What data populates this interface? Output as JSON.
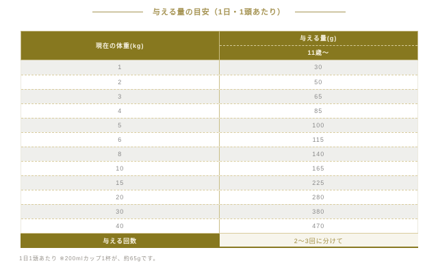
{
  "title": "与える量の目安（1日・1頭あたり）",
  "table": {
    "col1_header": "現在の体重(kg)",
    "col2_header": "与える量(g)",
    "col2_subheader": "11歳～",
    "rows": [
      [
        "1",
        "30"
      ],
      [
        "2",
        "50"
      ],
      [
        "3",
        "65"
      ],
      [
        "4",
        "85"
      ],
      [
        "5",
        "100"
      ],
      [
        "6",
        "115"
      ],
      [
        "8",
        "140"
      ],
      [
        "10",
        "165"
      ],
      [
        "15",
        "225"
      ],
      [
        "20",
        "280"
      ],
      [
        "30",
        "380"
      ],
      [
        "40",
        "470"
      ]
    ],
    "footer_label": "与える回数",
    "footer_value": "2～3回に分けて"
  },
  "note": "1日1頭あたり ※200mlカップ1杯が、約65gです。",
  "colors": {
    "olive_header": "#87781f",
    "gold_title": "#a59352",
    "tan_border": "#d8cb9b",
    "row_alt_gray": "#efefec",
    "row_white": "#ffffff",
    "footer_value_bg": "#f7f5ec",
    "footer_value_text": "#a08c3f",
    "body_text_gray": "#8b8b8b",
    "note_gray": "#96918a"
  },
  "chart_data": {
    "type": "table",
    "title": "与える量の目安（1日・1頭あたり）",
    "columns": [
      "現在の体重(kg)",
      "与える量(g) 11歳～"
    ],
    "rows": [
      [
        1,
        30
      ],
      [
        2,
        50
      ],
      [
        3,
        65
      ],
      [
        4,
        85
      ],
      [
        5,
        100
      ],
      [
        6,
        115
      ],
      [
        8,
        140
      ],
      [
        10,
        165
      ],
      [
        15,
        225
      ],
      [
        20,
        280
      ],
      [
        30,
        380
      ],
      [
        40,
        470
      ]
    ],
    "footer_row": [
      "与える回数",
      "2～3回に分けて"
    ],
    "footnote": "1日1頭あたり ※200mlカップ1杯が、約65gです。"
  }
}
